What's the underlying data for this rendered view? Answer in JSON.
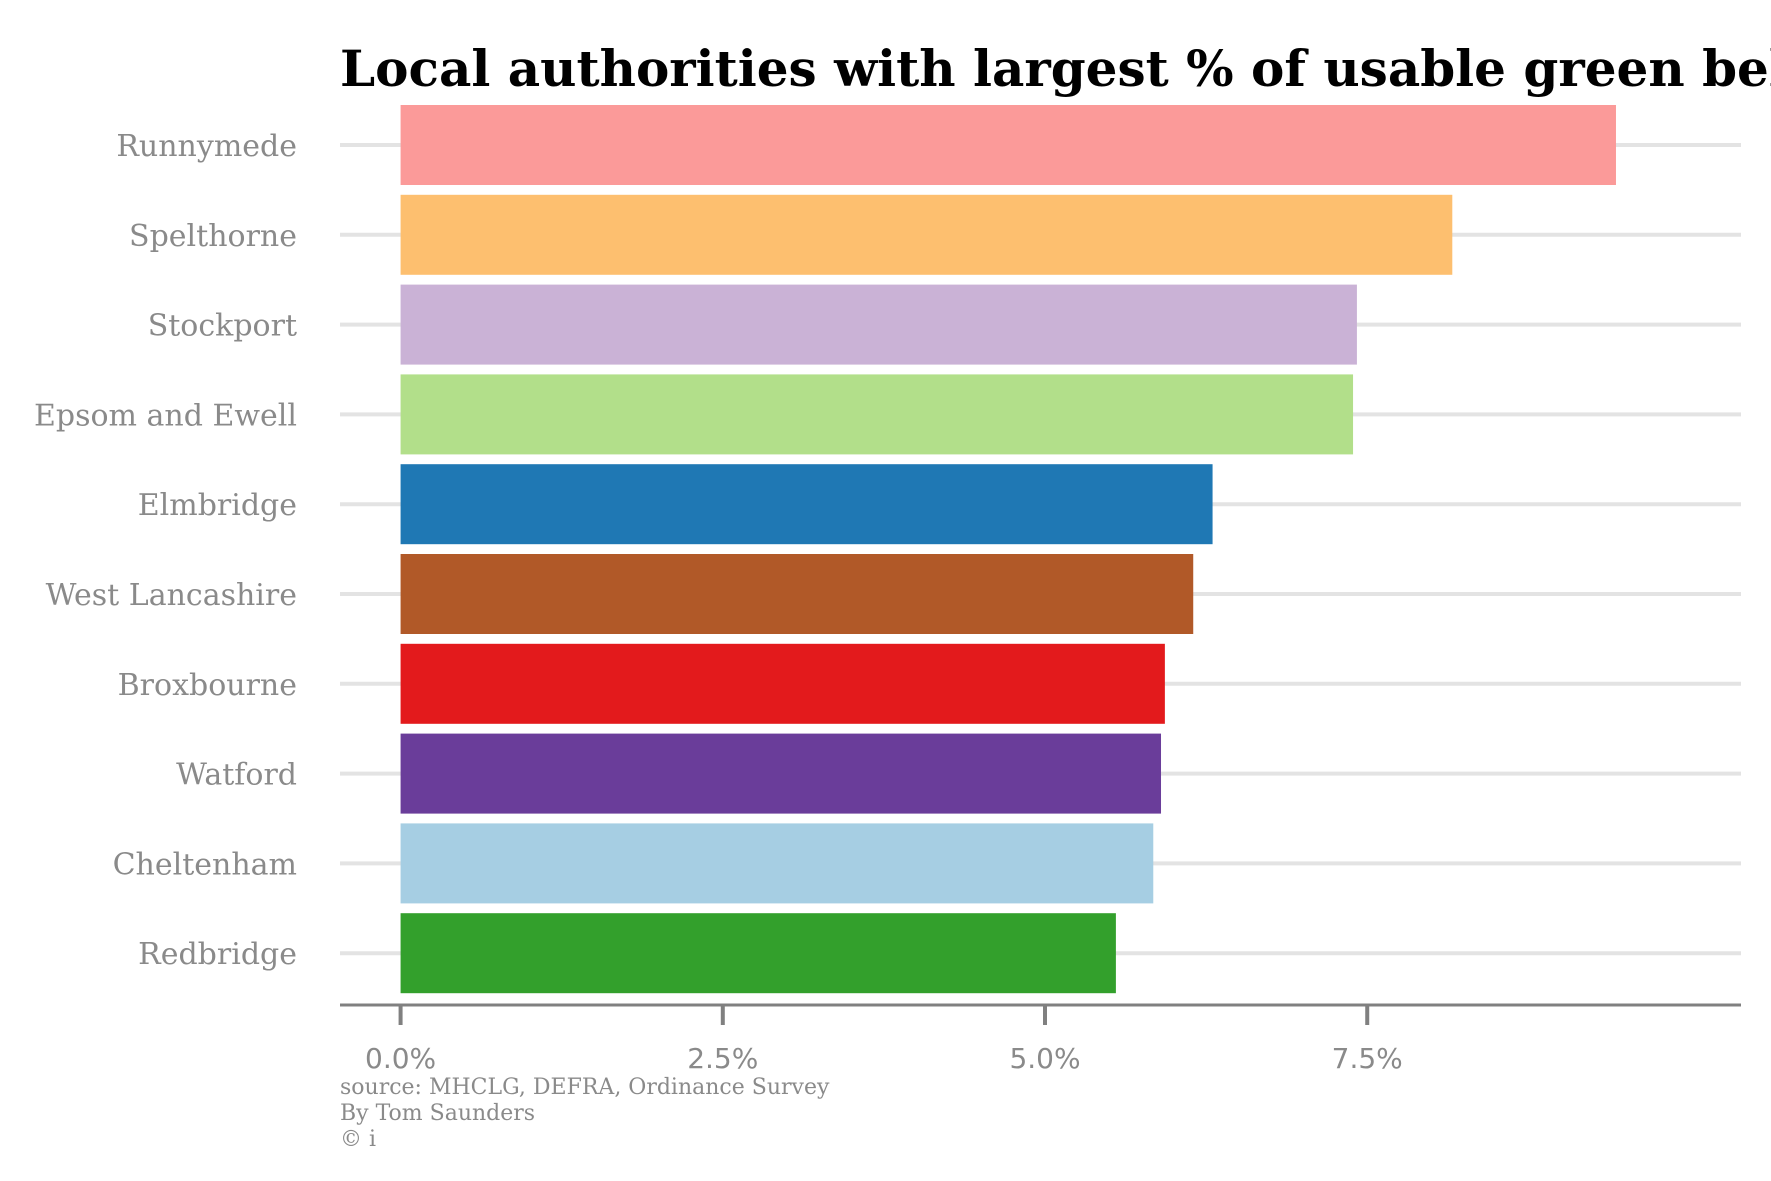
{
  "chart_data": {
    "type": "bar",
    "orientation": "horizontal",
    "title": "Local authorities with largest % of usable green belt",
    "categories": [
      "Runnymede",
      "Spelthorne",
      "Stockport",
      "Epsom and Ewell",
      "Elmbridge",
      "West Lancashire",
      "Broxbourne",
      "Watford",
      "Cheltenham",
      "Redbridge"
    ],
    "values": [
      9.43,
      8.16,
      7.42,
      7.39,
      6.3,
      6.15,
      5.93,
      5.9,
      5.84,
      5.55
    ],
    "colors": [
      "#fb9a99",
      "#fdbf6f",
      "#cab2d6",
      "#b2df8a",
      "#1f78b4",
      "#b15928",
      "#e31a1c",
      "#6a3d9a",
      "#a6cee3",
      "#33a02c"
    ],
    "xlim": [
      -0.47,
      10.4
    ],
    "xticks": [
      0,
      2.5,
      5.0,
      7.5
    ],
    "xtick_labels": [
      "0.0%",
      "2.5%",
      "5.0%",
      "7.5%"
    ],
    "grid": "horizontal",
    "legend": "none",
    "xlabel": "",
    "ylabel": ""
  },
  "footer": {
    "source": "source: MHCLG, DEFRA, Ordinance Survey",
    "author": "By Tom Saunders",
    "copyright": "© i"
  }
}
